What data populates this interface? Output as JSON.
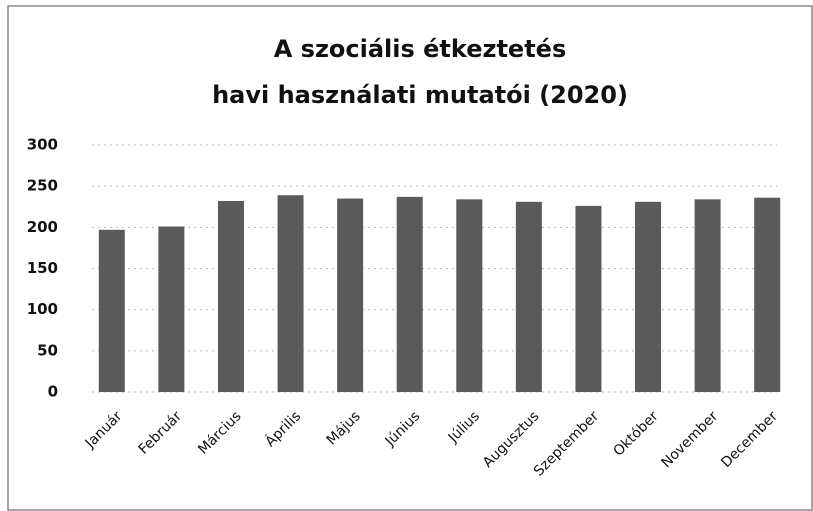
{
  "chart_data": {
    "type": "bar",
    "title": [
      "A szociális étkeztetés",
      "havi használati mutatói (2020)"
    ],
    "categories": [
      "Január",
      "Február",
      "Március",
      "Április",
      "Május",
      "Június",
      "Július",
      "Augusztus",
      "Szeptember",
      "Október",
      "November",
      "December"
    ],
    "values": [
      197,
      201,
      232,
      239,
      235,
      237,
      234,
      231,
      226,
      231,
      234,
      236
    ],
    "color": "#5a5a5a",
    "ylim": [
      0,
      300
    ],
    "yticks": [
      0,
      50,
      100,
      150,
      200,
      250,
      300
    ],
    "grid": true
  }
}
